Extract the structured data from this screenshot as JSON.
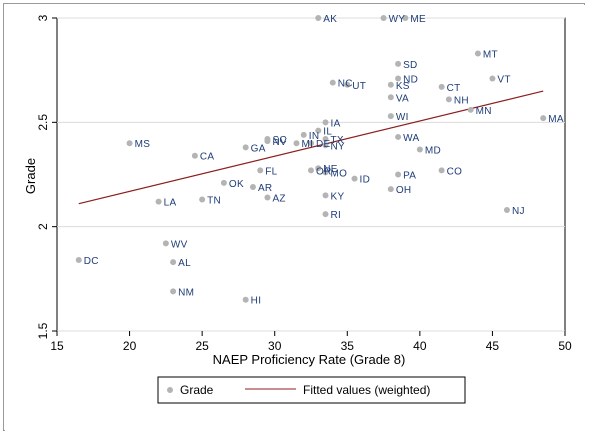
{
  "chart_data": {
    "type": "scatter",
    "xlabel": "NAEP Proficiency Rate (Grade 8)",
    "ylabel": "Grade",
    "xlim": [
      15,
      50
    ],
    "ylim": [
      1.5,
      3
    ],
    "x_ticks": [
      "15",
      "20",
      "25",
      "30",
      "35",
      "40",
      "45",
      "50"
    ],
    "y_ticks": [
      "1.5",
      "2",
      "2.5",
      "3"
    ],
    "grid": "horizontal",
    "legend_position": "bottom",
    "colors": {
      "points": "#b4b4b4",
      "fit_line": "#8c1e1e",
      "labels": "#1e3c78",
      "grid": "#dcdcdc"
    },
    "series": [
      {
        "name": "Grade",
        "points": [
          {
            "label": "AK",
            "x": 33.0,
            "y": 3.0
          },
          {
            "label": "WY",
            "x": 37.5,
            "y": 3.0
          },
          {
            "label": "ME",
            "x": 39.0,
            "y": 3.0
          },
          {
            "label": "MT",
            "x": 44.0,
            "y": 2.83
          },
          {
            "label": "SD",
            "x": 38.5,
            "y": 2.78
          },
          {
            "label": "VT",
            "x": 45.0,
            "y": 2.71
          },
          {
            "label": "KS",
            "x": 38.0,
            "y": 2.68
          },
          {
            "label": "ND",
            "x": 38.5,
            "y": 2.71
          },
          {
            "label": "NC",
            "x": 34.0,
            "y": 2.69
          },
          {
            "label": "UT",
            "x": 35.0,
            "y": 2.68
          },
          {
            "label": "CT",
            "x": 41.5,
            "y": 2.67
          },
          {
            "label": "VA",
            "x": 38.0,
            "y": 2.62
          },
          {
            "label": "NH",
            "x": 42.0,
            "y": 2.61
          },
          {
            "label": "IA",
            "x": 33.5,
            "y": 2.5
          },
          {
            "label": "WI",
            "x": 38.0,
            "y": 2.53
          },
          {
            "label": "MN",
            "x": 43.5,
            "y": 2.56
          },
          {
            "label": "MA",
            "x": 48.5,
            "y": 2.52
          },
          {
            "label": "IN",
            "x": 32.0,
            "y": 2.44
          },
          {
            "label": "IL",
            "x": 33.0,
            "y": 2.46
          },
          {
            "label": "NV",
            "x": 29.5,
            "y": 2.41
          },
          {
            "label": "MI",
            "x": 31.5,
            "y": 2.4
          },
          {
            "label": "SC",
            "x": 29.5,
            "y": 2.42
          },
          {
            "label": "WA",
            "x": 38.5,
            "y": 2.43
          },
          {
            "label": "MS",
            "x": 20.0,
            "y": 2.4
          },
          {
            "label": "GA",
            "x": 28.0,
            "y": 2.38
          },
          {
            "label": "TX",
            "x": 33.5,
            "y": 2.42
          },
          {
            "label": "MD",
            "x": 40.0,
            "y": 2.37
          },
          {
            "label": "CA",
            "x": 24.5,
            "y": 2.34
          },
          {
            "label": "DE",
            "x": 32.5,
            "y": 2.4
          },
          {
            "label": "NY",
            "x": 33.5,
            "y": 2.39
          },
          {
            "label": "NE",
            "x": 33.0,
            "y": 2.28
          },
          {
            "label": "FL",
            "x": 29.0,
            "y": 2.27
          },
          {
            "label": "OR",
            "x": 32.5,
            "y": 2.27
          },
          {
            "label": "MO",
            "x": 33.5,
            "y": 2.26
          },
          {
            "label": "CO",
            "x": 41.5,
            "y": 2.27
          },
          {
            "label": "ID",
            "x": 35.5,
            "y": 2.23
          },
          {
            "label": "PA",
            "x": 38.5,
            "y": 2.25
          },
          {
            "label": "OK",
            "x": 26.5,
            "y": 2.21
          },
          {
            "label": "AR",
            "x": 28.5,
            "y": 2.19
          },
          {
            "label": "OH",
            "x": 38.0,
            "y": 2.18
          },
          {
            "label": "KY",
            "x": 33.5,
            "y": 2.15
          },
          {
            "label": "AZ",
            "x": 29.5,
            "y": 2.14
          },
          {
            "label": "LA",
            "x": 22.0,
            "y": 2.12
          },
          {
            "label": "TN",
            "x": 25.0,
            "y": 2.13
          },
          {
            "label": "RI",
            "x": 33.5,
            "y": 2.06
          },
          {
            "label": "NJ",
            "x": 46.0,
            "y": 2.08
          },
          {
            "label": "WV",
            "x": 22.5,
            "y": 1.92
          },
          {
            "label": "DC",
            "x": 16.5,
            "y": 1.84
          },
          {
            "label": "AL",
            "x": 23.0,
            "y": 1.83
          },
          {
            "label": "NM",
            "x": 23.0,
            "y": 1.69
          },
          {
            "label": "HI",
            "x": 28.0,
            "y": 1.65
          }
        ]
      },
      {
        "name": "Fitted values (weighted)",
        "type": "line",
        "points": [
          {
            "x": 16.5,
            "y": 2.11
          },
          {
            "x": 48.5,
            "y": 2.65
          }
        ]
      }
    ]
  }
}
